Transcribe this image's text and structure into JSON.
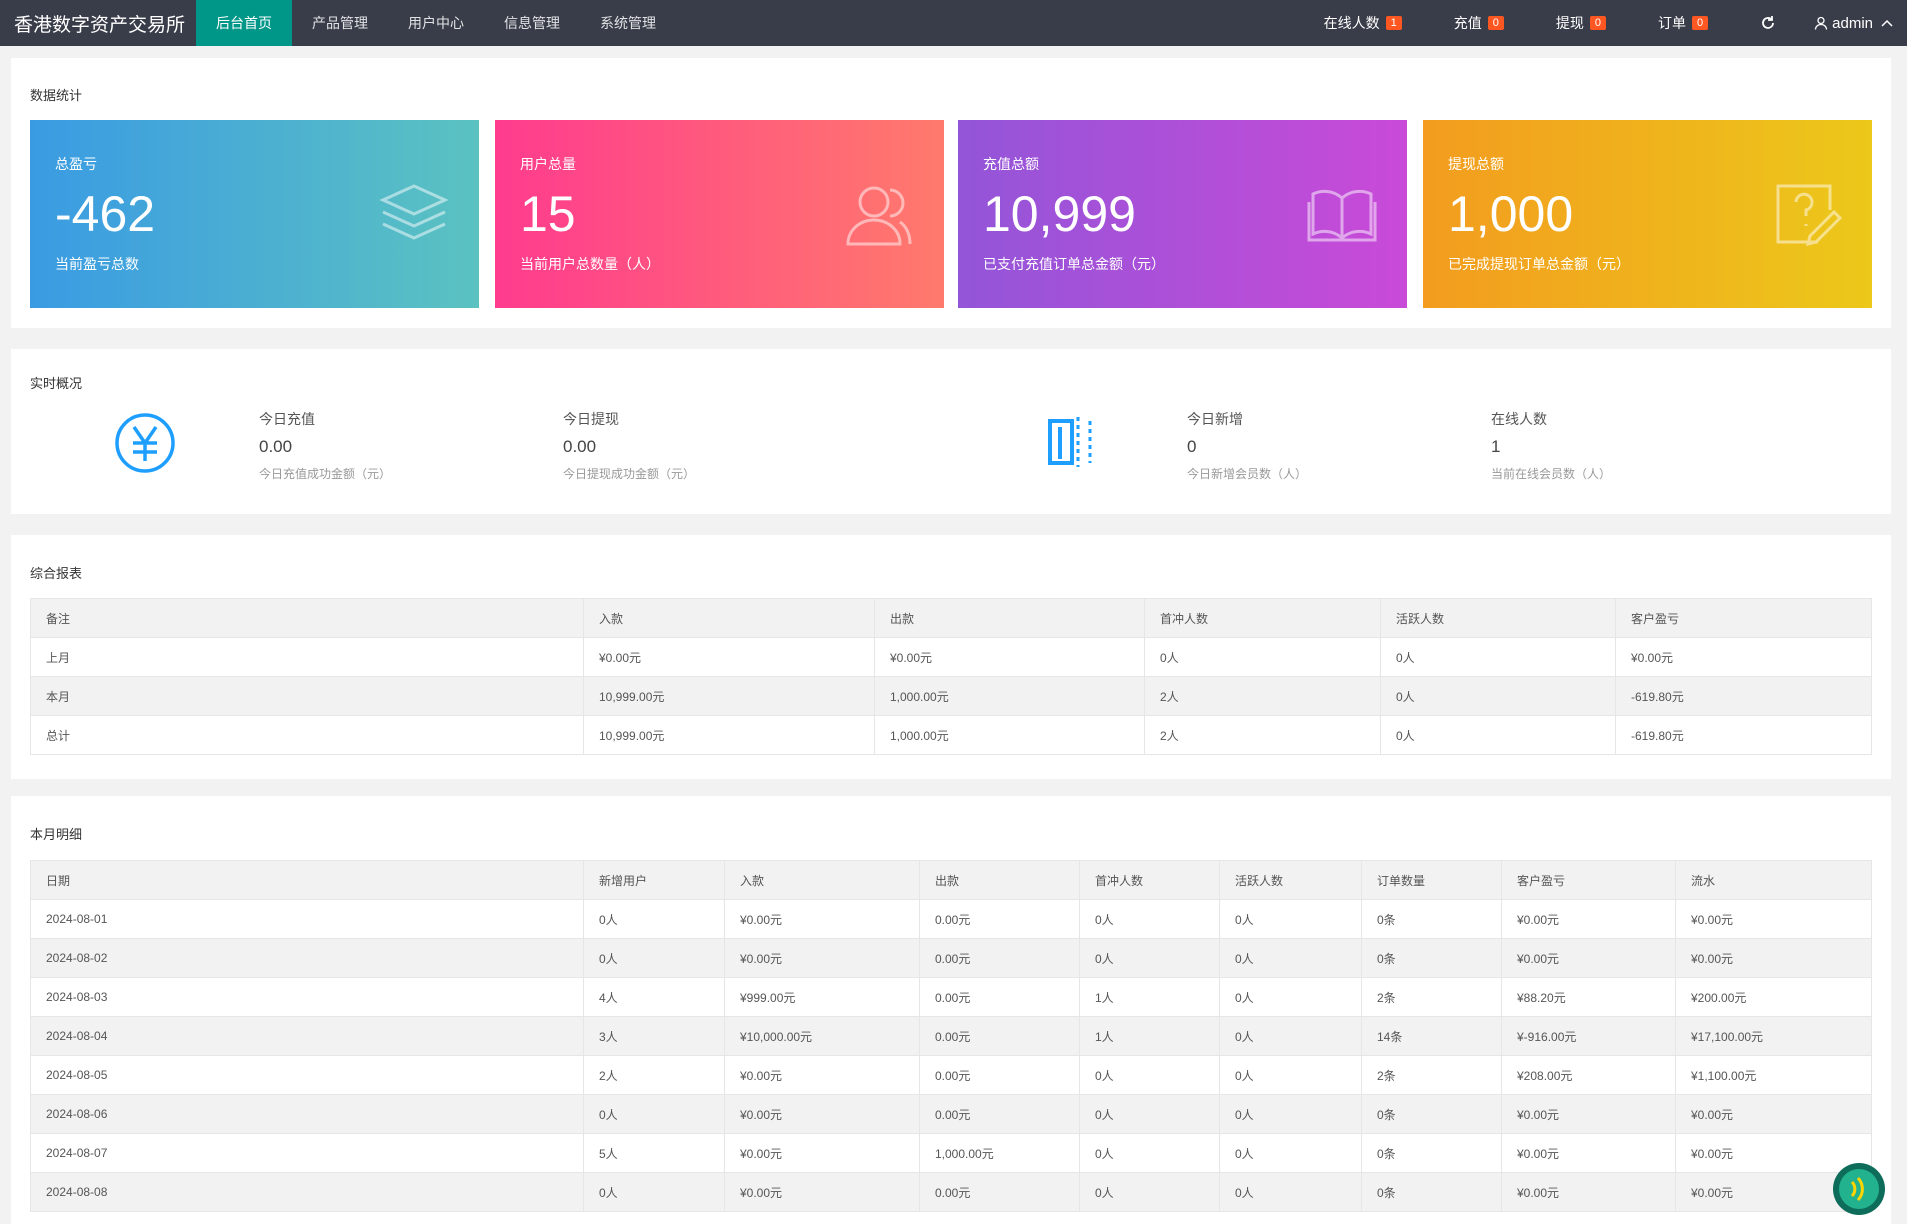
{
  "nav": {
    "brand": "香港数字资产交易所",
    "menu": [
      "后台首页",
      "产品管理",
      "用户中心",
      "信息管理",
      "系统管理"
    ],
    "right": [
      {
        "label": "在线人数",
        "badge": "1"
      },
      {
        "label": "充值",
        "badge": "0"
      },
      {
        "label": "提现",
        "badge": "0"
      },
      {
        "label": "订单",
        "badge": "0"
      }
    ],
    "user": "admin"
  },
  "stats": {
    "title": "数据统计",
    "cards": [
      {
        "title": "总盈亏",
        "value": "-462",
        "desc": "当前盈亏总数"
      },
      {
        "title": "用户总量",
        "value": "15",
        "desc": "当前用户总数量（人）"
      },
      {
        "title": "充值总额",
        "value": "10,999",
        "desc": "已支付充值订单总金额（元）"
      },
      {
        "title": "提现总额",
        "value": "1,000",
        "desc": "已完成提现订单总金额（元）"
      }
    ]
  },
  "realtime": {
    "title": "实时概况",
    "items": [
      {
        "title": "今日充值",
        "value": "0.00",
        "desc": "今日充值成功金额（元）"
      },
      {
        "title": "今日提现",
        "value": "0.00",
        "desc": "今日提现成功金额（元）"
      },
      {
        "title": "今日新增",
        "value": "0",
        "desc": "今日新增会员数（人）"
      },
      {
        "title": "在线人数",
        "value": "1",
        "desc": "当前在线会员数（人）"
      }
    ]
  },
  "report": {
    "title": "综合报表",
    "columns": [
      "备注",
      "入款",
      "出款",
      "首冲人数",
      "活跃人数",
      "客户盈亏"
    ],
    "rows": [
      [
        "上月",
        "¥0.00元",
        "¥0.00元",
        "0人",
        "0人",
        "¥0.00元"
      ],
      [
        "本月",
        "10,999.00元",
        "1,000.00元",
        "2人",
        "0人",
        "-619.80元"
      ],
      [
        "总计",
        "10,999.00元",
        "1,000.00元",
        "2人",
        "0人",
        "-619.80元"
      ]
    ]
  },
  "monthly": {
    "title": "本月明细",
    "columns": [
      "日期",
      "新增用户",
      "入款",
      "出款",
      "首冲人数",
      "活跃人数",
      "订单数量",
      "客户盈亏",
      "流水"
    ],
    "rows": [
      [
        "2024-08-01",
        "0人",
        "¥0.00元",
        "0.00元",
        "0人",
        "0人",
        "0条",
        "¥0.00元",
        "¥0.00元"
      ],
      [
        "2024-08-02",
        "0人",
        "¥0.00元",
        "0.00元",
        "0人",
        "0人",
        "0条",
        "¥0.00元",
        "¥0.00元"
      ],
      [
        "2024-08-03",
        "4人",
        "¥999.00元",
        "0.00元",
        "1人",
        "0人",
        "2条",
        "¥88.20元",
        "¥200.00元"
      ],
      [
        "2024-08-04",
        "3人",
        "¥10,000.00元",
        "0.00元",
        "1人",
        "0人",
        "14条",
        "¥-916.00元",
        "¥17,100.00元"
      ],
      [
        "2024-08-05",
        "2人",
        "¥0.00元",
        "0.00元",
        "0人",
        "0人",
        "2条",
        "¥208.00元",
        "¥1,100.00元"
      ],
      [
        "2024-08-06",
        "0人",
        "¥0.00元",
        "0.00元",
        "0人",
        "0人",
        "0条",
        "¥0.00元",
        "¥0.00元"
      ],
      [
        "2024-08-07",
        "5人",
        "¥0.00元",
        "1,000.00元",
        "0人",
        "0人",
        "0条",
        "¥0.00元",
        "¥0.00元"
      ],
      [
        "2024-08-08",
        "0人",
        "¥0.00元",
        "0.00元",
        "0人",
        "0人",
        "0条",
        "¥0.00元",
        "¥0.00元"
      ]
    ]
  }
}
